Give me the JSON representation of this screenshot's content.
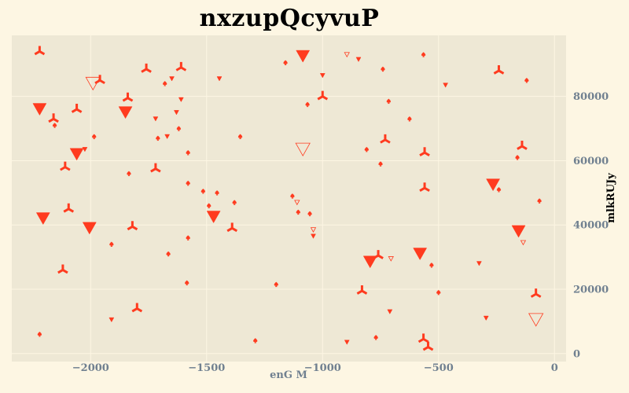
{
  "chart_data": {
    "type": "scatter",
    "title": "nxzupQcyvuP",
    "xlabel": "enG M",
    "ylabel": "mlkRUJy",
    "xlim": [
      -2340,
      50
    ],
    "ylim": [
      -2500,
      99000
    ],
    "x_ticks": [
      -2000,
      -1500,
      -1000,
      -500,
      0
    ],
    "x_tick_labels": [
      "−2000",
      "−1500",
      "−1000",
      "−500",
      "0"
    ],
    "y_ticks": [
      0,
      20000,
      40000,
      60000,
      80000
    ],
    "y_tick_labels": [
      "0",
      "20000",
      "40000",
      "60000",
      "80000"
    ],
    "grid": true,
    "y_axis_side": "right",
    "colors": {
      "background": "#fdf6e3",
      "plot_background": "#eee8d5",
      "grid": "#fdf6e3",
      "marker": "#ff3b1f",
      "tick_label": "#708090",
      "xlabel": "#708090",
      "ylabel": "#000000"
    },
    "points": [
      {
        "x": -2220,
        "y": 94000,
        "m": "tri",
        "s": "large"
      },
      {
        "x": -2220,
        "y": 76000,
        "m": "tridown",
        "s": "large"
      },
      {
        "x": -2160,
        "y": 73000,
        "m": "tri",
        "s": "large"
      },
      {
        "x": -2155,
        "y": 71000,
        "m": "spade",
        "s": "small"
      },
      {
        "x": -2205,
        "y": 42000,
        "m": "tridown",
        "s": "large"
      },
      {
        "x": -2220,
        "y": 6000,
        "m": "spade",
        "s": "small"
      },
      {
        "x": -2110,
        "y": 58000,
        "m": "tri",
        "s": "large"
      },
      {
        "x": -2095,
        "y": 45000,
        "m": "tri",
        "s": "large"
      },
      {
        "x": -2120,
        "y": 26000,
        "m": "tri",
        "s": "large"
      },
      {
        "x": -2060,
        "y": 76000,
        "m": "tri",
        "s": "large"
      },
      {
        "x": -2060,
        "y": 62000,
        "m": "tridown",
        "s": "large"
      },
      {
        "x": -2025,
        "y": 63500,
        "m": "tridown",
        "s": "small"
      },
      {
        "x": -2005,
        "y": 39000,
        "m": "tridown",
        "s": "large"
      },
      {
        "x": -1990,
        "y": 84000,
        "m": "tridown",
        "s": "open_large"
      },
      {
        "x": -1960,
        "y": 85000,
        "m": "tri",
        "s": "large"
      },
      {
        "x": -1985,
        "y": 67500,
        "m": "spade",
        "s": "small"
      },
      {
        "x": -1910,
        "y": 34000,
        "m": "spade",
        "s": "small"
      },
      {
        "x": -1910,
        "y": 10500,
        "m": "tridown",
        "s": "small"
      },
      {
        "x": -1850,
        "y": 75000,
        "m": "tridown",
        "s": "large"
      },
      {
        "x": -1840,
        "y": 79500,
        "m": "tri",
        "s": "large"
      },
      {
        "x": -1835,
        "y": 56000,
        "m": "spade",
        "s": "small"
      },
      {
        "x": -1820,
        "y": 39500,
        "m": "tri",
        "s": "large"
      },
      {
        "x": -1800,
        "y": 14000,
        "m": "tri",
        "s": "large"
      },
      {
        "x": -1760,
        "y": 88500,
        "m": "tri",
        "s": "large"
      },
      {
        "x": -1720,
        "y": 57500,
        "m": "tri",
        "s": "large"
      },
      {
        "x": -1720,
        "y": 73000,
        "m": "tridown",
        "s": "small"
      },
      {
        "x": -1710,
        "y": 67000,
        "m": "spade",
        "s": "small"
      },
      {
        "x": -1680,
        "y": 84000,
        "m": "spade",
        "s": "small"
      },
      {
        "x": -1670,
        "y": 67500,
        "m": "tridown",
        "s": "small"
      },
      {
        "x": -1665,
        "y": 31000,
        "m": "spade",
        "s": "small"
      },
      {
        "x": -1650,
        "y": 85500,
        "m": "tridown",
        "s": "small"
      },
      {
        "x": -1630,
        "y": 75000,
        "m": "tridown",
        "s": "small"
      },
      {
        "x": -1620,
        "y": 70000,
        "m": "spade",
        "s": "small"
      },
      {
        "x": -1610,
        "y": 89000,
        "m": "tri",
        "s": "large"
      },
      {
        "x": -1610,
        "y": 79000,
        "m": "tridown",
        "s": "small"
      },
      {
        "x": -1580,
        "y": 62500,
        "m": "spade",
        "s": "small"
      },
      {
        "x": -1580,
        "y": 53000,
        "m": "spade",
        "s": "small"
      },
      {
        "x": -1580,
        "y": 36000,
        "m": "spade",
        "s": "small"
      },
      {
        "x": -1585,
        "y": 22000,
        "m": "spade",
        "s": "small"
      },
      {
        "x": -1515,
        "y": 50500,
        "m": "spade",
        "s": "small"
      },
      {
        "x": -1490,
        "y": 46000,
        "m": "spade",
        "s": "small"
      },
      {
        "x": -1470,
        "y": 42500,
        "m": "tridown",
        "s": "large"
      },
      {
        "x": -1455,
        "y": 50000,
        "m": "spade",
        "s": "small"
      },
      {
        "x": -1445,
        "y": 85500,
        "m": "tridown",
        "s": "small"
      },
      {
        "x": -1390,
        "y": 39000,
        "m": "tri",
        "s": "large"
      },
      {
        "x": -1380,
        "y": 47000,
        "m": "spade",
        "s": "small"
      },
      {
        "x": -1355,
        "y": 67500,
        "m": "spade",
        "s": "small"
      },
      {
        "x": -1290,
        "y": 4000,
        "m": "spade",
        "s": "small"
      },
      {
        "x": -1200,
        "y": 21500,
        "m": "spade",
        "s": "small"
      },
      {
        "x": -1160,
        "y": 90500,
        "m": "spade",
        "s": "small"
      },
      {
        "x": -1130,
        "y": 49000,
        "m": "spade",
        "s": "small"
      },
      {
        "x": -1110,
        "y": 47000,
        "m": "tridown",
        "s": "open_small"
      },
      {
        "x": -1105,
        "y": 44000,
        "m": "spade",
        "s": "small"
      },
      {
        "x": -1085,
        "y": 92500,
        "m": "tridown",
        "s": "large"
      },
      {
        "x": -1085,
        "y": 63500,
        "m": "tridown",
        "s": "open_large"
      },
      {
        "x": -1065,
        "y": 77500,
        "m": "spade",
        "s": "small"
      },
      {
        "x": -1055,
        "y": 43500,
        "m": "spade",
        "s": "small"
      },
      {
        "x": -1040,
        "y": 38500,
        "m": "tridown",
        "s": "open_small"
      },
      {
        "x": -1040,
        "y": 36500,
        "m": "tridown",
        "s": "small"
      },
      {
        "x": -1000,
        "y": 80000,
        "m": "tri",
        "s": "large"
      },
      {
        "x": -1000,
        "y": 86500,
        "m": "tridown",
        "s": "small"
      },
      {
        "x": -895,
        "y": 93000,
        "m": "tridown",
        "s": "open_small"
      },
      {
        "x": -895,
        "y": 3500,
        "m": "tridown",
        "s": "small"
      },
      {
        "x": -845,
        "y": 91500,
        "m": "tridown",
        "s": "small"
      },
      {
        "x": -830,
        "y": 19500,
        "m": "tri",
        "s": "large"
      },
      {
        "x": -810,
        "y": 63500,
        "m": "spade",
        "s": "small"
      },
      {
        "x": -795,
        "y": 28500,
        "m": "tridown",
        "s": "large"
      },
      {
        "x": -770,
        "y": 5000,
        "m": "spade",
        "s": "small"
      },
      {
        "x": -760,
        "y": 30500,
        "m": "tri",
        "s": "large"
      },
      {
        "x": -750,
        "y": 59000,
        "m": "spade",
        "s": "small"
      },
      {
        "x": -740,
        "y": 88500,
        "m": "spade",
        "s": "small"
      },
      {
        "x": -730,
        "y": 66500,
        "m": "tri",
        "s": "large"
      },
      {
        "x": -715,
        "y": 78500,
        "m": "spade",
        "s": "small"
      },
      {
        "x": -705,
        "y": 29500,
        "m": "tridown",
        "s": "open_small"
      },
      {
        "x": -710,
        "y": 13000,
        "m": "tridown",
        "s": "small"
      },
      {
        "x": -625,
        "y": 73000,
        "m": "spade",
        "s": "small"
      },
      {
        "x": -580,
        "y": 31000,
        "m": "tridown",
        "s": "large"
      },
      {
        "x": -565,
        "y": 93000,
        "m": "spade",
        "s": "small"
      },
      {
        "x": -560,
        "y": 62500,
        "m": "tri",
        "s": "large"
      },
      {
        "x": -560,
        "y": 51500,
        "m": "tri",
        "s": "large"
      },
      {
        "x": -565,
        "y": 4500,
        "m": "tri",
        "s": "large"
      },
      {
        "x": -545,
        "y": 2000,
        "m": "tri",
        "s": "large"
      },
      {
        "x": -530,
        "y": 27500,
        "m": "spade",
        "s": "small"
      },
      {
        "x": -500,
        "y": 19000,
        "m": "spade",
        "s": "small"
      },
      {
        "x": -470,
        "y": 83500,
        "m": "tridown",
        "s": "small"
      },
      {
        "x": -325,
        "y": 28000,
        "m": "tridown",
        "s": "small"
      },
      {
        "x": -295,
        "y": 11000,
        "m": "tridown",
        "s": "small"
      },
      {
        "x": -265,
        "y": 52500,
        "m": "tridown",
        "s": "large"
      },
      {
        "x": -240,
        "y": 88000,
        "m": "tri",
        "s": "large"
      },
      {
        "x": -240,
        "y": 51000,
        "m": "spade",
        "s": "small"
      },
      {
        "x": -160,
        "y": 61000,
        "m": "spade",
        "s": "small"
      },
      {
        "x": -155,
        "y": 38000,
        "m": "tridown",
        "s": "large"
      },
      {
        "x": -140,
        "y": 64500,
        "m": "tri",
        "s": "large"
      },
      {
        "x": -135,
        "y": 34500,
        "m": "tridown",
        "s": "open_small"
      },
      {
        "x": -120,
        "y": 85000,
        "m": "spade",
        "s": "small"
      },
      {
        "x": -80,
        "y": 18500,
        "m": "tri",
        "s": "large"
      },
      {
        "x": -80,
        "y": 10500,
        "m": "tridown",
        "s": "open_large"
      },
      {
        "x": -65,
        "y": 47500,
        "m": "spade",
        "s": "small"
      }
    ]
  }
}
